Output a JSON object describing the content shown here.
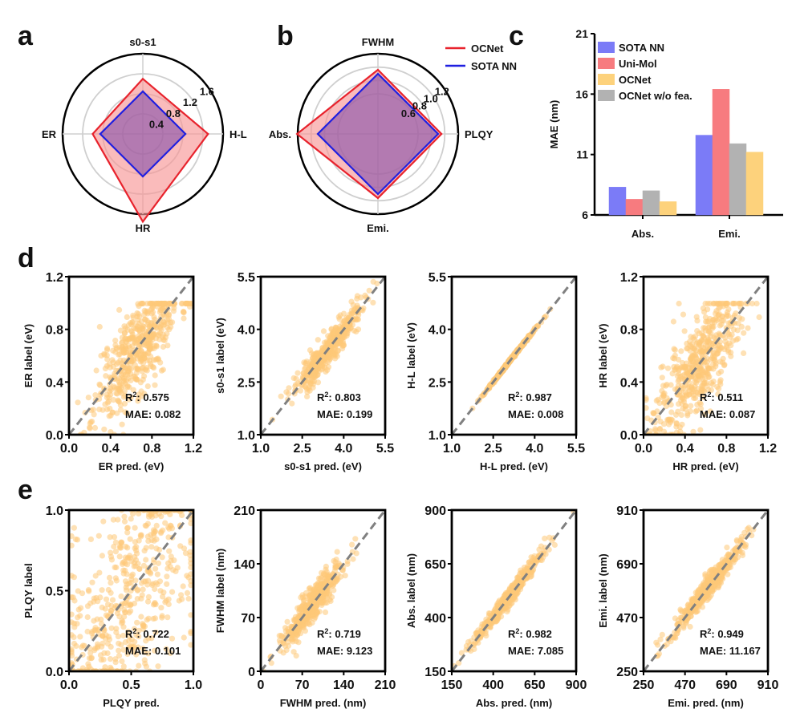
{
  "chart_data": [
    {
      "panel": "a",
      "type": "radar",
      "axes": [
        "s0-s1",
        "H-L",
        "HR",
        "ER"
      ],
      "rings": [
        0.4,
        0.8,
        1.2,
        1.6
      ],
      "ring_labels": [
        "0.4",
        "0.8",
        "1.2",
        "1.6"
      ],
      "series": [
        {
          "name": "OCNet",
          "color": "#e8232d",
          "values": [
            1.1,
            1.3,
            1.75,
            1.0
          ]
        },
        {
          "name": "SOTA NN",
          "color": "#1f1fe0",
          "values": [
            0.85,
            0.85,
            0.85,
            0.85
          ]
        }
      ]
    },
    {
      "panel": "b",
      "type": "radar",
      "axes": [
        "FWHM",
        "PLQY",
        "Emi.",
        "Abs."
      ],
      "rings": [
        0.6,
        0.8,
        1.0,
        1.2
      ],
      "ring_labels": [
        "0.6",
        "0.8",
        "1.0",
        "1.2"
      ],
      "series": [
        {
          "name": "OCNet",
          "color": "#e8232d",
          "values": [
            0.96,
            0.95,
            0.96,
            1.21
          ]
        },
        {
          "name": "SOTA NN",
          "color": "#1f1fe0",
          "values": [
            0.9,
            0.9,
            0.9,
            0.9
          ]
        }
      ],
      "legend": [
        "OCNet",
        "SOTA NN"
      ]
    },
    {
      "panel": "c",
      "type": "bar",
      "categories": [
        "Abs.",
        "Emi."
      ],
      "ylabel": "MAE (nm)",
      "ylim": [
        6,
        21
      ],
      "yticks": [
        "6",
        "11",
        "16",
        "21"
      ],
      "series": [
        {
          "name": "SOTA NN",
          "color": "#7b7bf7",
          "values": [
            8.3,
            12.6
          ]
        },
        {
          "name": "Uni-Mol",
          "color": "#f77b7f",
          "values": [
            7.3,
            16.4
          ]
        },
        {
          "name": "OCNet w/o fea.",
          "color": "#b2b2b2",
          "values": [
            8.0,
            11.9
          ]
        },
        {
          "name": "OCNet",
          "color": "#fdd27c",
          "values": [
            7.1,
            11.2
          ]
        }
      ],
      "legend": [
        "SOTA NN",
        "Uni-Mol",
        "OCNet",
        "OCNet w/o fea."
      ]
    },
    {
      "panel": "d1",
      "type": "scatter",
      "xlabel": "ER pred.  (eV)",
      "ylabel": "ER label  (eV)",
      "range": [
        0,
        1.2
      ],
      "ticks": [
        "0.0",
        "0.4",
        "0.8",
        "1.2"
      ],
      "r2": "0.575",
      "mae": "0.082",
      "spread": 0.15,
      "center": 0.55,
      "sd": 0.17
    },
    {
      "panel": "d2",
      "type": "scatter",
      "xlabel": "s0-s1 pred.  (eV)",
      "ylabel": "s0-s1 label (eV)",
      "range": [
        1.0,
        5.5
      ],
      "ticks": [
        "1.0",
        "2.5",
        "4.0",
        "5.5"
      ],
      "r2": "0.803",
      "mae": "0.199",
      "spread": 0.05,
      "center": 0.53,
      "sd": 0.13
    },
    {
      "panel": "d3",
      "type": "scatter",
      "xlabel": "H-L pred.  (eV)",
      "ylabel": "H-L label (eV)",
      "range": [
        1.0,
        5.5
      ],
      "ticks": [
        "1.0",
        "2.5",
        "4.0",
        "5.5"
      ],
      "r2": "0.987",
      "mae": "0.008",
      "spread": 0.004,
      "center": 0.47,
      "sd": 0.09
    },
    {
      "panel": "d4",
      "type": "scatter",
      "xlabel": "HR pred.  (eV)",
      "ylabel": "HR label  (eV)",
      "range": [
        0,
        1.2
      ],
      "ticks": [
        "0.0",
        "0.4",
        "0.8",
        "1.2"
      ],
      "r2": "0.511",
      "mae": "0.087",
      "spread": 0.16,
      "center": 0.45,
      "sd": 0.17
    },
    {
      "panel": "e1",
      "type": "scatter",
      "xlabel": "PLQY pred.",
      "ylabel": "PLQY label",
      "range": [
        0,
        1.0
      ],
      "ticks": [
        "0.0",
        "0.5",
        "1.0"
      ],
      "r2": "0.722",
      "mae": "0.101",
      "spread": 0.2,
      "center": 0.5,
      "sd": 0.28
    },
    {
      "panel": "e2",
      "type": "scatter",
      "xlabel": "FWHM pred. (nm)",
      "ylabel": "FWHM label (nm)",
      "range": [
        0,
        210
      ],
      "ticks": [
        "0",
        "70",
        "140",
        "210"
      ],
      "r2": "0.719",
      "mae": "9.123",
      "spread": 0.05,
      "center": 0.42,
      "sd": 0.12
    },
    {
      "panel": "e3",
      "type": "scatter",
      "xlabel": "Abs. pred. (nm)",
      "ylabel": "Abs. label (nm)",
      "range": [
        150,
        900
      ],
      "ticks": [
        "150",
        "400",
        "650",
        "900"
      ],
      "r2": "0.982",
      "mae": "7.085",
      "spread": 0.025,
      "center": 0.45,
      "sd": 0.14
    },
    {
      "panel": "e4",
      "type": "scatter",
      "xlabel": "Emi. pred. (nm)",
      "ylabel": "Emi. label (nm)",
      "range": [
        250,
        910
      ],
      "ticks": [
        "250",
        "470",
        "690",
        "910"
      ],
      "r2": "0.949",
      "mae": "11.167",
      "spread": 0.035,
      "center": 0.52,
      "sd": 0.14
    }
  ],
  "panel_letters": [
    "a",
    "b",
    "c",
    "d",
    "e"
  ],
  "colors": {
    "scatter": "#fdc878",
    "diagonal": "#808080"
  }
}
